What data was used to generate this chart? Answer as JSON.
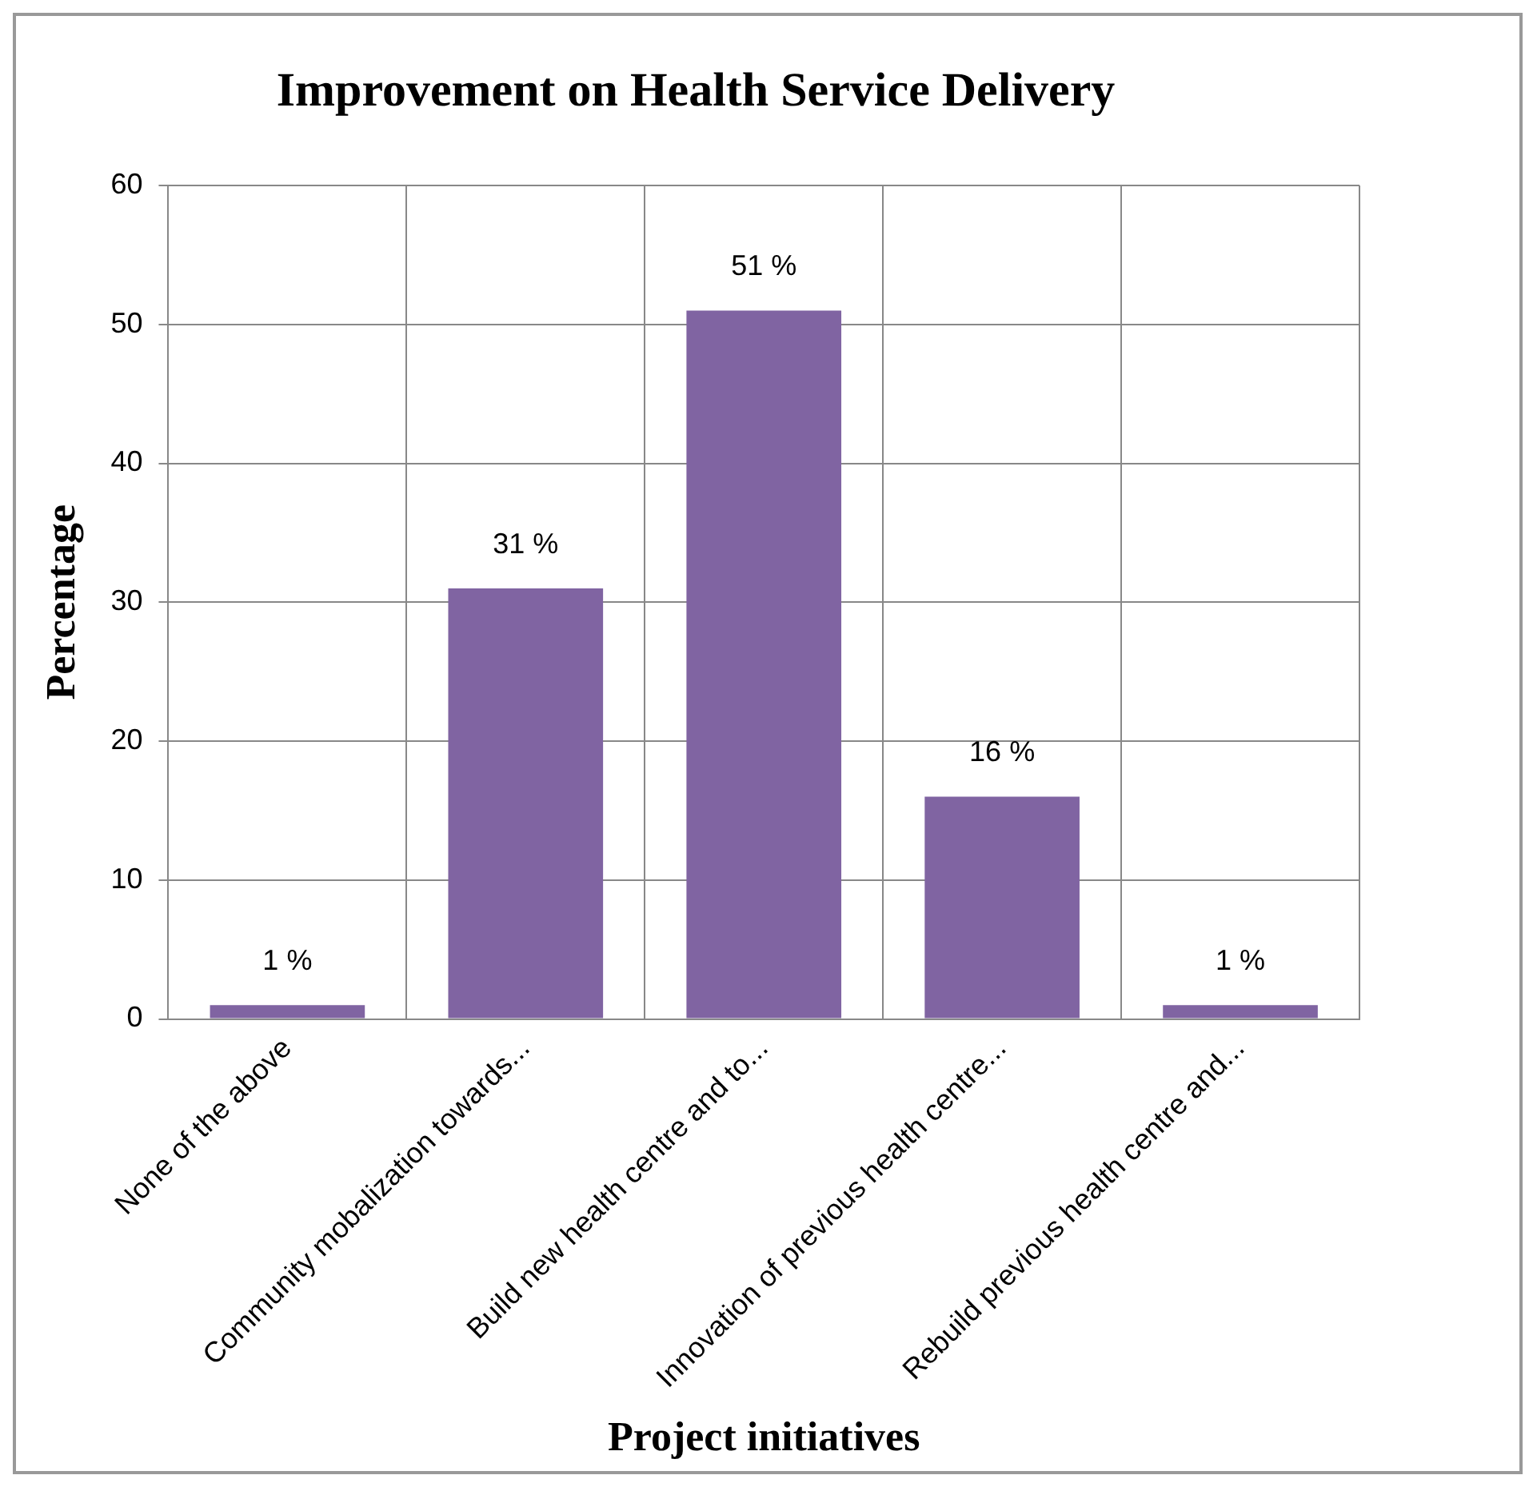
{
  "chart_data": {
    "type": "bar",
    "title": "Improvement on Health Service Delivery",
    "xlabel": "Project initiatives",
    "ylabel": "Percentage",
    "categories": [
      "None of the above",
      "Community mobalization towards...",
      "Build new health centre and to...",
      "Innovation of previous health centre...",
      "Rebuild previous health centre and..."
    ],
    "values": [
      1,
      31,
      51,
      16,
      1
    ],
    "color": "#8064a2",
    "value_labels": [
      "1 %",
      "31 %",
      "51 %",
      "16 %",
      "1 %"
    ],
    "ylim": [
      0,
      60
    ],
    "yticks": [
      0,
      10,
      20,
      30,
      40,
      50,
      60
    ],
    "grid": true,
    "legend": false
  }
}
